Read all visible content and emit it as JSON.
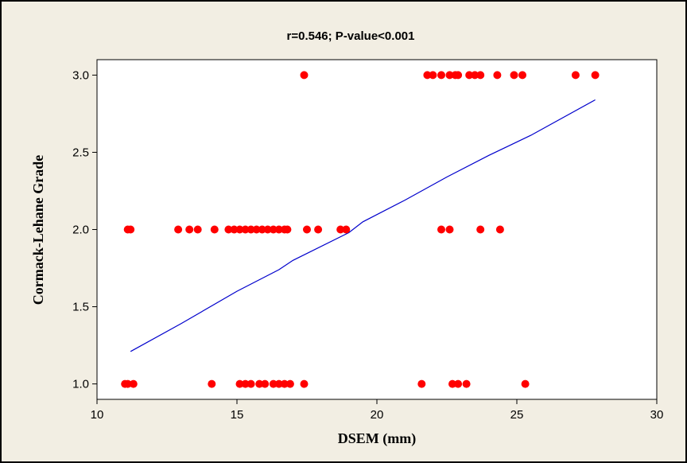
{
  "chart_data": {
    "type": "scatter",
    "title": "r=0.546; P-value<0.001",
    "xlabel": "DSEM (mm)",
    "ylabel": "Cormack-Lehane Grade",
    "xlim": [
      10,
      30
    ],
    "ylim": [
      0.9,
      3.1
    ],
    "xticks": [
      10,
      15,
      20,
      25,
      30
    ],
    "yticks": [
      1.0,
      1.5,
      2.0,
      2.5,
      3.0
    ],
    "xtick_labels": [
      "10",
      "15",
      "20",
      "25",
      "30"
    ],
    "ytick_labels": [
      "1.0",
      "1.5",
      "2.0",
      "2.5",
      "3.0"
    ],
    "grid": false,
    "legend": "none",
    "point_color": "#ff0000",
    "line_color": "#0000cc",
    "points": [
      [
        17.4,
        3.0
      ],
      [
        21.8,
        3.0
      ],
      [
        22.0,
        3.0
      ],
      [
        22.3,
        3.0
      ],
      [
        22.6,
        3.0
      ],
      [
        22.8,
        3.0
      ],
      [
        22.9,
        3.0
      ],
      [
        23.3,
        3.0
      ],
      [
        23.5,
        3.0
      ],
      [
        23.7,
        3.0
      ],
      [
        24.3,
        3.0
      ],
      [
        24.9,
        3.0
      ],
      [
        25.2,
        3.0
      ],
      [
        27.1,
        3.0
      ],
      [
        27.8,
        3.0
      ],
      [
        11.1,
        2.0
      ],
      [
        11.2,
        2.0
      ],
      [
        12.9,
        2.0
      ],
      [
        13.3,
        2.0
      ],
      [
        13.6,
        2.0
      ],
      [
        14.2,
        2.0
      ],
      [
        14.7,
        2.0
      ],
      [
        14.9,
        2.0
      ],
      [
        15.1,
        2.0
      ],
      [
        15.3,
        2.0
      ],
      [
        15.5,
        2.0
      ],
      [
        15.7,
        2.0
      ],
      [
        15.9,
        2.0
      ],
      [
        16.1,
        2.0
      ],
      [
        16.3,
        2.0
      ],
      [
        16.5,
        2.0
      ],
      [
        16.7,
        2.0
      ],
      [
        16.8,
        2.0
      ],
      [
        17.5,
        2.0
      ],
      [
        17.9,
        2.0
      ],
      [
        18.7,
        2.0
      ],
      [
        18.9,
        2.0
      ],
      [
        22.3,
        2.0
      ],
      [
        22.6,
        2.0
      ],
      [
        23.7,
        2.0
      ],
      [
        24.4,
        2.0
      ],
      [
        11.0,
        1.0
      ],
      [
        11.1,
        1.0
      ],
      [
        11.3,
        1.0
      ],
      [
        14.1,
        1.0
      ],
      [
        15.1,
        1.0
      ],
      [
        15.3,
        1.0
      ],
      [
        15.5,
        1.0
      ],
      [
        15.8,
        1.0
      ],
      [
        16.0,
        1.0
      ],
      [
        16.3,
        1.0
      ],
      [
        16.5,
        1.0
      ],
      [
        16.7,
        1.0
      ],
      [
        16.9,
        1.0
      ],
      [
        17.4,
        1.0
      ],
      [
        21.6,
        1.0
      ],
      [
        22.7,
        1.0
      ],
      [
        22.9,
        1.0
      ],
      [
        23.2,
        1.0
      ],
      [
        25.3,
        1.0
      ]
    ],
    "fit_line": [
      [
        11.2,
        1.21
      ],
      [
        13.0,
        1.39
      ],
      [
        15.0,
        1.6
      ],
      [
        16.5,
        1.74
      ],
      [
        17.0,
        1.8
      ],
      [
        19.0,
        1.98
      ],
      [
        19.5,
        2.05
      ],
      [
        21.0,
        2.19
      ],
      [
        22.5,
        2.34
      ],
      [
        24.0,
        2.48
      ],
      [
        25.5,
        2.61
      ],
      [
        27.8,
        2.84
      ]
    ]
  }
}
